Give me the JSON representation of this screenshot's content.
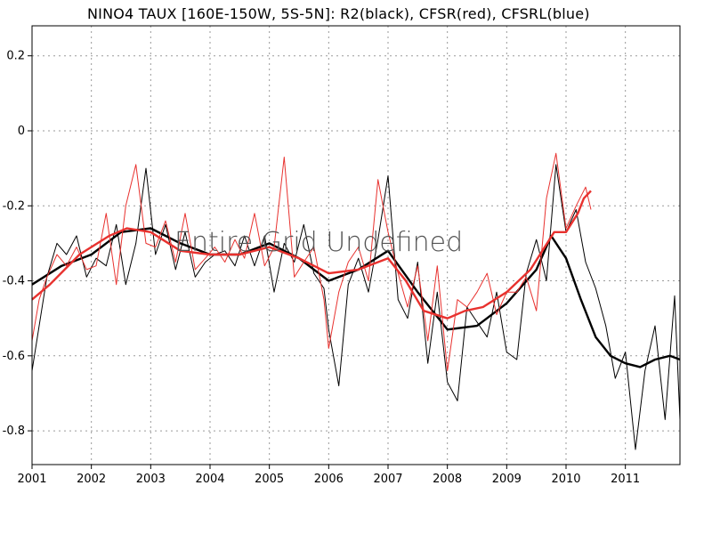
{
  "title": "NINO4 TAUX [160E-150W, 5S-5N]: R2(black), CFSR(red), CFSRL(blue)",
  "watermark": "Entire Grid Undefined",
  "colors": {
    "r2": "#000000",
    "cfsr": "#e8312e",
    "cfsrl": "#1f3fd0"
  },
  "chart_data": {
    "type": "line",
    "title": "NINO4 TAUX [160E-150W, 5S-5N]: R2(black), CFSR(red), CFSRL(blue)",
    "xlabel": "",
    "ylabel": "",
    "xlim": [
      2001.0,
      2011.92
    ],
    "ylim": [
      -0.89,
      0.28
    ],
    "grid": true,
    "xticks": [
      "2001",
      "2002",
      "2003",
      "2004",
      "2005",
      "2006",
      "2007",
      "2008",
      "2009",
      "2010",
      "2011"
    ],
    "yticks": [
      0.2,
      0,
      -0.2,
      -0.4,
      -0.6,
      -0.8
    ],
    "series": [
      {
        "name": "R2",
        "style": "monthly",
        "color": "#000000",
        "x": [
          2001.0,
          2001.12,
          2001.25,
          2001.42,
          2001.58,
          2001.75,
          2001.92,
          2002.08,
          2002.25,
          2002.42,
          2002.58,
          2002.75,
          2002.92,
          2003.08,
          2003.25,
          2003.42,
          2003.58,
          2003.75,
          2003.92,
          2004.08,
          2004.25,
          2004.42,
          2004.58,
          2004.75,
          2004.92,
          2005.08,
          2005.25,
          2005.42,
          2005.58,
          2005.75,
          2005.92,
          2006.0,
          2006.17,
          2006.33,
          2006.5,
          2006.67,
          2006.83,
          2007.0,
          2007.17,
          2007.33,
          2007.5,
          2007.67,
          2007.83,
          2008.0,
          2008.17,
          2008.33,
          2008.5,
          2008.67,
          2008.83,
          2009.0,
          2009.17,
          2009.33,
          2009.5,
          2009.67,
          2009.83,
          2010.0,
          2010.17,
          2010.33,
          2010.5,
          2010.67,
          2010.83,
          2011.0,
          2011.17,
          2011.33,
          2011.5,
          2011.67,
          2011.83,
          2011.92
        ],
        "y": [
          -0.64,
          -0.52,
          -0.39,
          -0.3,
          -0.33,
          -0.28,
          -0.39,
          -0.34,
          -0.36,
          -0.25,
          -0.41,
          -0.3,
          -0.1,
          -0.33,
          -0.25,
          -0.37,
          -0.27,
          -0.39,
          -0.35,
          -0.33,
          -0.32,
          -0.36,
          -0.28,
          -0.36,
          -0.28,
          -0.43,
          -0.3,
          -0.35,
          -0.25,
          -0.38,
          -0.42,
          -0.53,
          -0.68,
          -0.41,
          -0.34,
          -0.43,
          -0.29,
          -0.12,
          -0.45,
          -0.5,
          -0.35,
          -0.62,
          -0.43,
          -0.67,
          -0.72,
          -0.47,
          -0.51,
          -0.55,
          -0.43,
          -0.59,
          -0.61,
          -0.38,
          -0.29,
          -0.4,
          -0.09,
          -0.27,
          -0.21,
          -0.35,
          -0.42,
          -0.52,
          -0.66,
          -0.59,
          -0.85,
          -0.64,
          -0.52,
          -0.77,
          -0.44,
          -0.77
        ]
      },
      {
        "name": "R2",
        "style": "smoothed",
        "color": "#000000",
        "x": [
          2001.0,
          2001.5,
          2002.0,
          2002.5,
          2003.0,
          2003.5,
          2004.0,
          2004.5,
          2005.0,
          2005.5,
          2006.0,
          2006.5,
          2007.0,
          2007.5,
          2008.0,
          2008.5,
          2009.0,
          2009.5,
          2009.75,
          2010.0,
          2010.25,
          2010.5,
          2010.75,
          2011.0,
          2011.25,
          2011.5,
          2011.75,
          2011.92
        ],
        "y": [
          -0.41,
          -0.36,
          -0.33,
          -0.27,
          -0.26,
          -0.3,
          -0.33,
          -0.33,
          -0.3,
          -0.34,
          -0.4,
          -0.37,
          -0.32,
          -0.43,
          -0.53,
          -0.52,
          -0.46,
          -0.37,
          -0.28,
          -0.34,
          -0.45,
          -0.55,
          -0.6,
          -0.62,
          -0.63,
          -0.61,
          -0.6,
          -0.61
        ]
      },
      {
        "name": "CFSR",
        "style": "monthly",
        "color": "#e8312e",
        "x": [
          2001.0,
          2001.12,
          2001.25,
          2001.42,
          2001.58,
          2001.75,
          2001.92,
          2002.08,
          2002.25,
          2002.42,
          2002.58,
          2002.75,
          2002.92,
          2003.08,
          2003.25,
          2003.42,
          2003.58,
          2003.75,
          2003.92,
          2004.08,
          2004.25,
          2004.42,
          2004.58,
          2004.75,
          2004.92,
          2005.08,
          2005.25,
          2005.42,
          2005.58,
          2005.75,
          2005.92,
          2006.0,
          2006.17,
          2006.33,
          2006.5,
          2006.67,
          2006.83,
          2007.0,
          2007.17,
          2007.33,
          2007.5,
          2007.67,
          2007.83,
          2008.0,
          2008.17,
          2008.33,
          2008.5,
          2008.67,
          2008.83,
          2009.0,
          2009.17,
          2009.33,
          2009.5,
          2009.67,
          2009.83,
          2010.0,
          2010.17,
          2010.33,
          2010.42
        ],
        "y": [
          -0.56,
          -0.45,
          -0.39,
          -0.33,
          -0.36,
          -0.31,
          -0.37,
          -0.36,
          -0.22,
          -0.41,
          -0.2,
          -0.09,
          -0.3,
          -0.31,
          -0.24,
          -0.35,
          -0.22,
          -0.37,
          -0.34,
          -0.31,
          -0.35,
          -0.29,
          -0.34,
          -0.22,
          -0.36,
          -0.31,
          -0.07,
          -0.39,
          -0.35,
          -0.31,
          -0.45,
          -0.58,
          -0.43,
          -0.35,
          -0.31,
          -0.4,
          -0.13,
          -0.27,
          -0.38,
          -0.47,
          -0.36,
          -0.56,
          -0.36,
          -0.64,
          -0.45,
          -0.47,
          -0.43,
          -0.38,
          -0.49,
          -0.43,
          -0.43,
          -0.39,
          -0.48,
          -0.18,
          -0.06,
          -0.26,
          -0.2,
          -0.15,
          -0.21
        ]
      },
      {
        "name": "CFSR",
        "style": "smoothed",
        "color": "#e8312e",
        "x": [
          2001.0,
          2001.3,
          2001.8,
          2002.3,
          2002.6,
          2003.0,
          2003.5,
          2004.0,
          2004.5,
          2005.0,
          2005.5,
          2006.0,
          2006.5,
          2007.0,
          2007.3,
          2007.6,
          2008.0,
          2008.3,
          2008.6,
          2009.0,
          2009.4,
          2009.8,
          2010.0,
          2010.2,
          2010.3,
          2010.42
        ],
        "y": [
          -0.45,
          -0.41,
          -0.33,
          -0.28,
          -0.26,
          -0.27,
          -0.32,
          -0.33,
          -0.33,
          -0.31,
          -0.34,
          -0.38,
          -0.37,
          -0.34,
          -0.4,
          -0.48,
          -0.5,
          -0.48,
          -0.47,
          -0.43,
          -0.37,
          -0.27,
          -0.27,
          -0.22,
          -0.18,
          -0.16
        ]
      }
    ]
  }
}
